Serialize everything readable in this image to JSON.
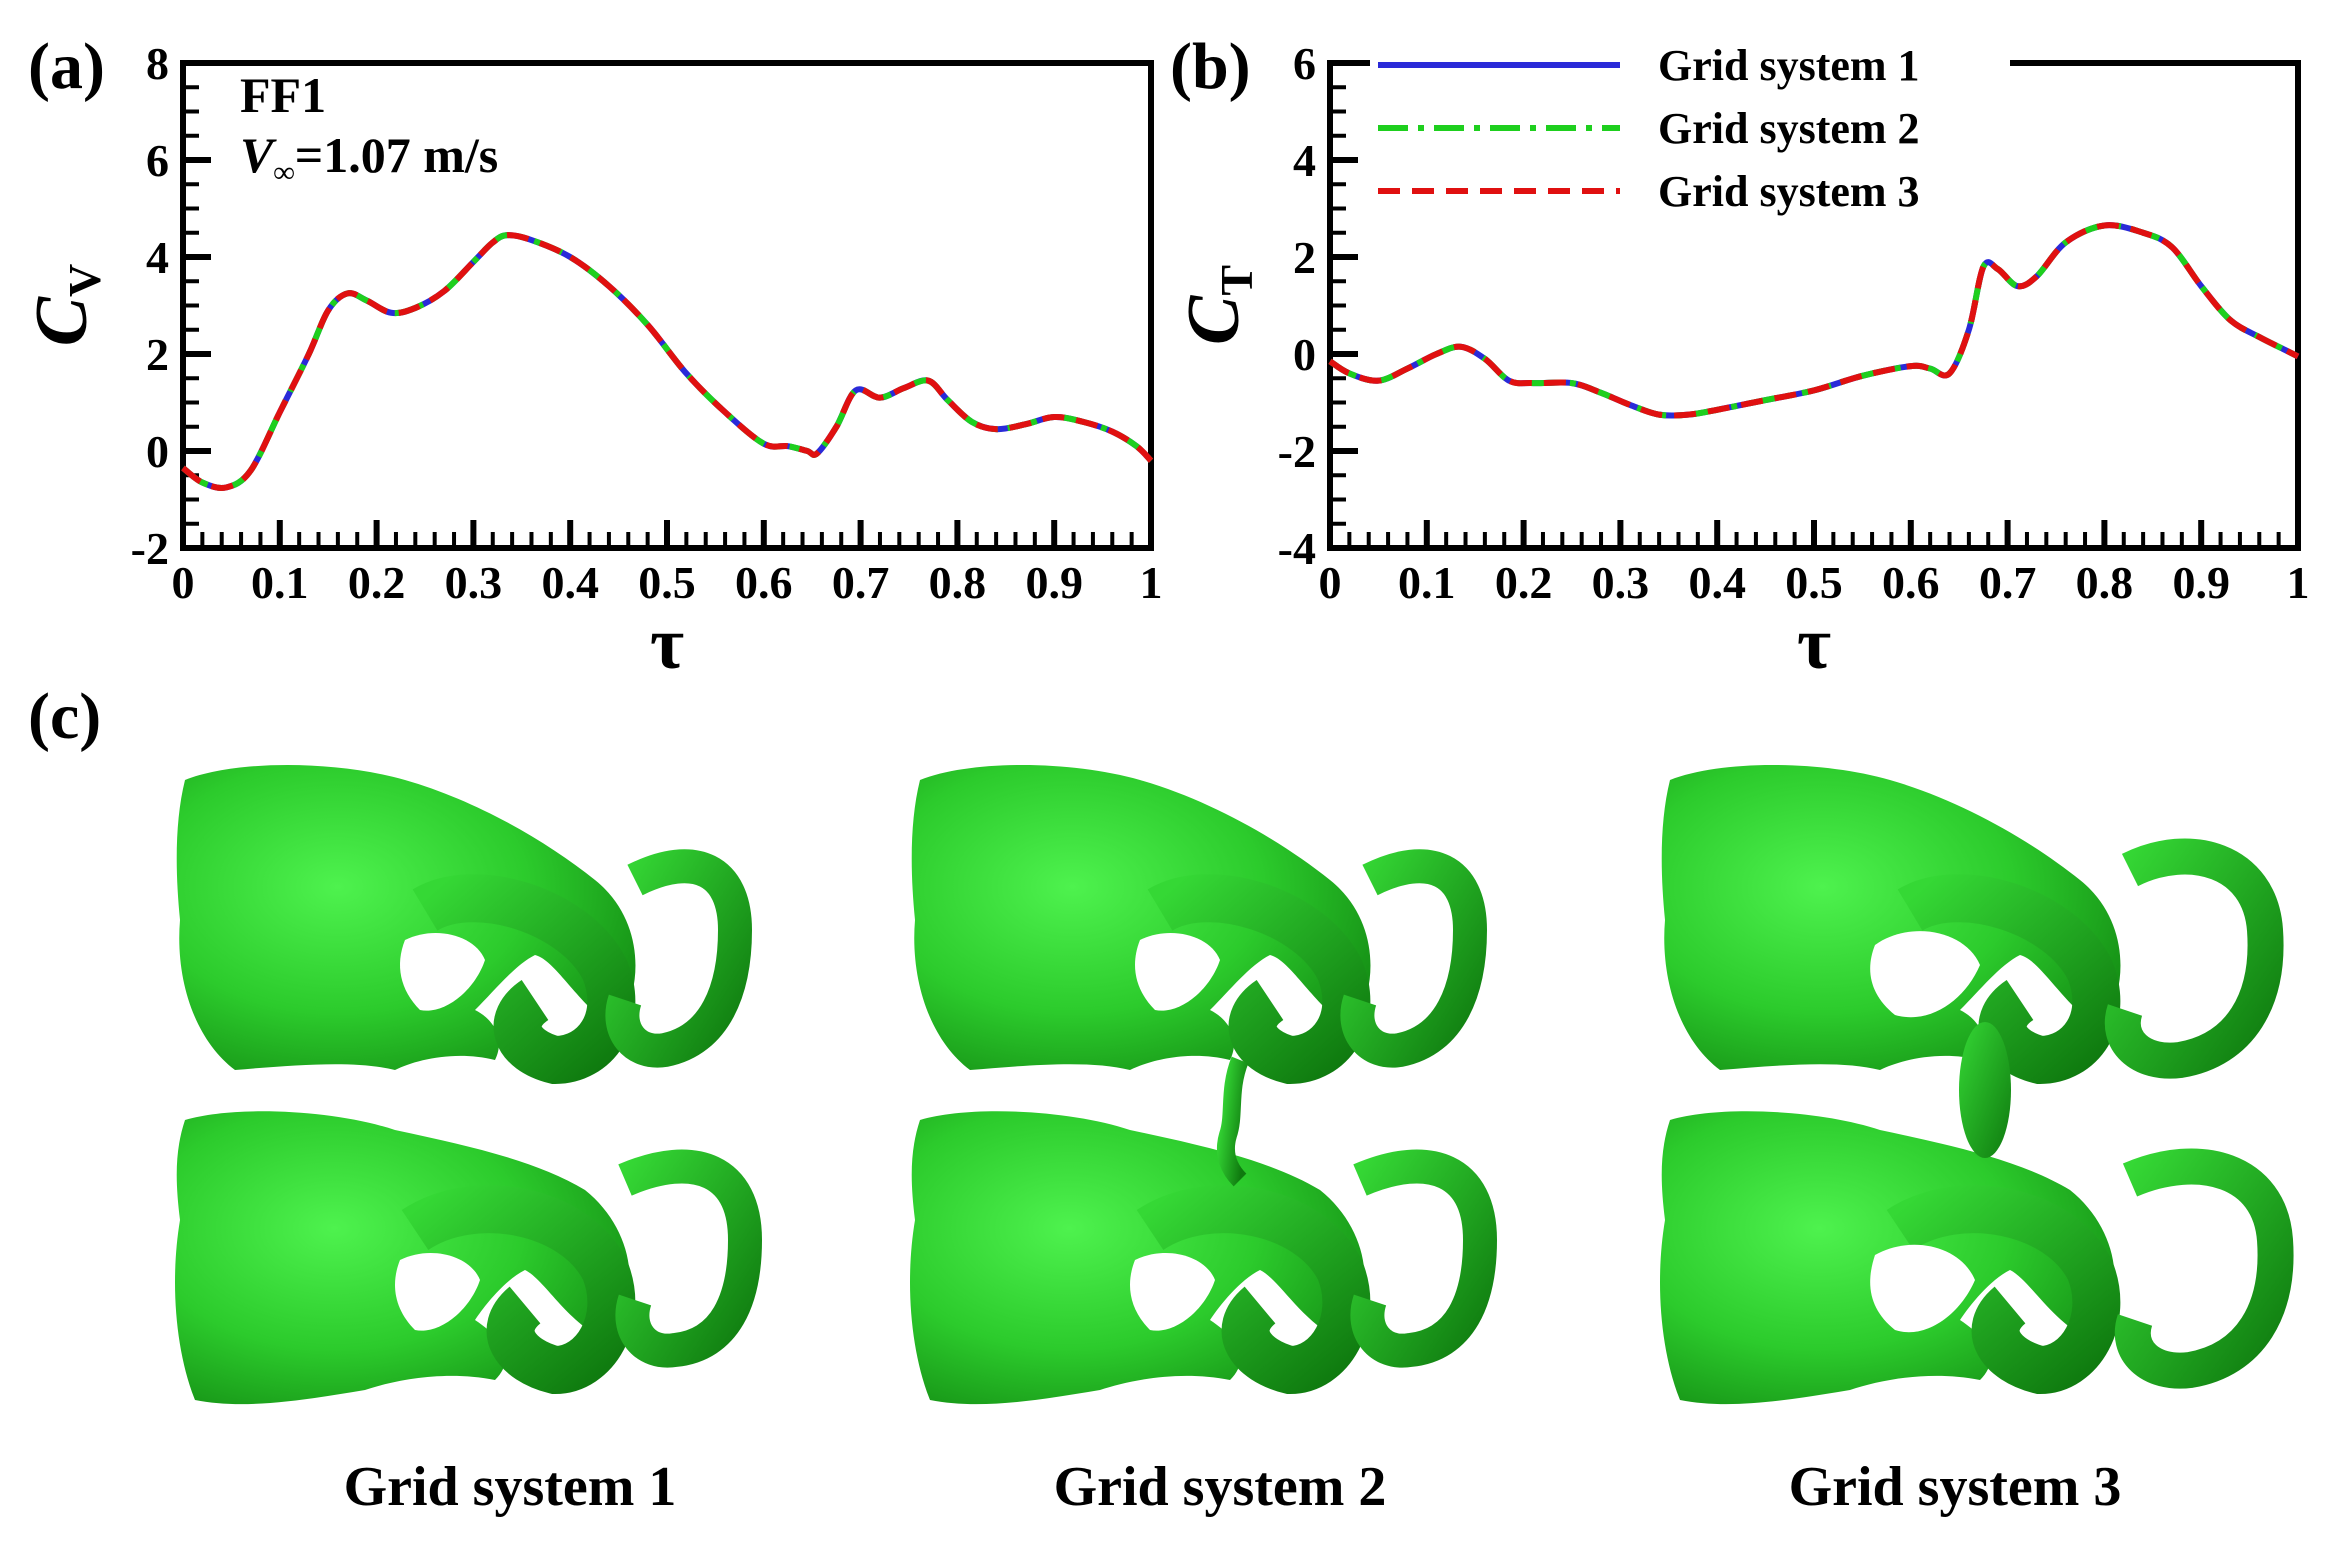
{
  "panel_labels": {
    "a": "(a)",
    "b": "(b)",
    "c": "(c)"
  },
  "annotation": {
    "case": "FF1",
    "velocity_var": "V",
    "velocity_sub": "∞",
    "velocity_value": "=1.07 m/s"
  },
  "legend": [
    {
      "label": "Grid system 1",
      "color": "#2a2ad8",
      "dash": "solid"
    },
    {
      "label": "Grid system 2",
      "color": "#1ecf1e",
      "dash": "dashdot"
    },
    {
      "label": "Grid system 3",
      "color": "#e01010",
      "dash": "dashed"
    }
  ],
  "chart_data": [
    {
      "type": "line",
      "panel": "(a)",
      "xlabel": "τ",
      "ylabel": "C",
      "ylabel_sub": "V",
      "xlim": [
        0,
        1
      ],
      "ylim": [
        -2,
        8
      ],
      "x_ticks": [
        "0",
        "0.1",
        "0.2",
        "0.3",
        "0.4",
        "0.5",
        "0.6",
        "0.7",
        "0.8",
        "0.9",
        "1"
      ],
      "y_ticks": [
        "-2",
        "0",
        "2",
        "4",
        "6",
        "8"
      ],
      "x": [
        0,
        0.02,
        0.045,
        0.07,
        0.1,
        0.13,
        0.15,
        0.17,
        0.19,
        0.215,
        0.24,
        0.27,
        0.3,
        0.32,
        0.335,
        0.36,
        0.4,
        0.44,
        0.48,
        0.52,
        0.56,
        0.6,
        0.625,
        0.645,
        0.655,
        0.675,
        0.695,
        0.72,
        0.745,
        0.77,
        0.79,
        0.815,
        0.84,
        0.87,
        0.9,
        0.93,
        0.96,
        0.985,
        1
      ],
      "series": [
        {
          "name": "Grid system 1",
          "values": [
            -0.35,
            -0.65,
            -0.75,
            -0.4,
            0.8,
            2.0,
            2.9,
            3.25,
            3.1,
            2.85,
            2.95,
            3.3,
            3.9,
            4.3,
            4.45,
            4.35,
            4.0,
            3.4,
            2.6,
            1.6,
            0.8,
            0.15,
            0.1,
            0.0,
            -0.05,
            0.5,
            1.25,
            1.1,
            1.3,
            1.45,
            1.05,
            0.6,
            0.45,
            0.55,
            0.7,
            0.6,
            0.4,
            0.1,
            -0.2
          ]
        },
        {
          "name": "Grid system 2",
          "values": [
            -0.35,
            -0.65,
            -0.75,
            -0.4,
            0.8,
            2.0,
            2.9,
            3.25,
            3.1,
            2.85,
            2.95,
            3.3,
            3.9,
            4.3,
            4.45,
            4.35,
            4.0,
            3.4,
            2.6,
            1.6,
            0.8,
            0.15,
            0.1,
            0.0,
            -0.05,
            0.5,
            1.25,
            1.1,
            1.3,
            1.45,
            1.05,
            0.6,
            0.45,
            0.55,
            0.7,
            0.6,
            0.4,
            0.1,
            -0.2
          ]
        },
        {
          "name": "Grid system 3",
          "values": [
            -0.35,
            -0.65,
            -0.75,
            -0.4,
            0.8,
            2.0,
            2.9,
            3.25,
            3.1,
            2.85,
            2.95,
            3.3,
            3.9,
            4.3,
            4.45,
            4.35,
            4.0,
            3.4,
            2.6,
            1.6,
            0.8,
            0.15,
            0.1,
            0.0,
            -0.05,
            0.5,
            1.25,
            1.1,
            1.3,
            1.45,
            1.05,
            0.6,
            0.45,
            0.55,
            0.7,
            0.6,
            0.4,
            0.1,
            -0.2
          ]
        }
      ]
    },
    {
      "type": "line",
      "panel": "(b)",
      "xlabel": "τ",
      "ylabel": "C",
      "ylabel_sub": "T",
      "xlim": [
        0,
        1
      ],
      "ylim": [
        -4,
        6
      ],
      "x_ticks": [
        "0",
        "0.1",
        "0.2",
        "0.3",
        "0.4",
        "0.5",
        "0.6",
        "0.7",
        "0.8",
        "0.9",
        "1"
      ],
      "y_ticks": [
        "-4",
        "-2",
        "0",
        "2",
        "4",
        "6"
      ],
      "x": [
        0,
        0.02,
        0.05,
        0.08,
        0.11,
        0.135,
        0.16,
        0.185,
        0.21,
        0.25,
        0.28,
        0.31,
        0.34,
        0.37,
        0.4,
        0.45,
        0.5,
        0.55,
        0.6,
        0.62,
        0.64,
        0.66,
        0.675,
        0.69,
        0.71,
        0.73,
        0.76,
        0.8,
        0.84,
        0.87,
        0.9,
        0.93,
        0.96,
        0.985,
        1
      ],
      "series": [
        {
          "name": "Grid system 1",
          "values": [
            -0.15,
            -0.4,
            -0.55,
            -0.3,
            0.0,
            0.15,
            -0.1,
            -0.55,
            -0.6,
            -0.6,
            -0.8,
            -1.05,
            -1.25,
            -1.25,
            -1.15,
            -0.95,
            -0.75,
            -0.45,
            -0.25,
            -0.3,
            -0.4,
            0.5,
            1.8,
            1.75,
            1.4,
            1.6,
            2.3,
            2.65,
            2.5,
            2.2,
            1.4,
            0.7,
            0.35,
            0.1,
            -0.05
          ]
        },
        {
          "name": "Grid system 2",
          "values": [
            -0.15,
            -0.4,
            -0.55,
            -0.3,
            0.0,
            0.15,
            -0.1,
            -0.55,
            -0.6,
            -0.6,
            -0.8,
            -1.05,
            -1.25,
            -1.25,
            -1.15,
            -0.95,
            -0.75,
            -0.45,
            -0.25,
            -0.3,
            -0.4,
            0.5,
            1.8,
            1.75,
            1.4,
            1.6,
            2.3,
            2.65,
            2.5,
            2.2,
            1.4,
            0.7,
            0.35,
            0.1,
            -0.05
          ]
        },
        {
          "name": "Grid system 3",
          "values": [
            -0.15,
            -0.4,
            -0.55,
            -0.3,
            0.0,
            0.15,
            -0.1,
            -0.55,
            -0.6,
            -0.6,
            -0.8,
            -1.05,
            -1.25,
            -1.25,
            -1.15,
            -0.95,
            -0.75,
            -0.45,
            -0.25,
            -0.3,
            -0.4,
            0.5,
            1.8,
            1.75,
            1.4,
            1.6,
            2.3,
            2.65,
            2.5,
            2.2,
            1.4,
            0.7,
            0.35,
            0.1,
            -0.05
          ]
        }
      ]
    }
  ],
  "vortex_images": [
    {
      "caption": "Grid system 1",
      "color": "#22b522",
      "bridge": "none"
    },
    {
      "caption": "Grid system 2",
      "color": "#22b522",
      "bridge": "thin"
    },
    {
      "caption": "Grid system 3",
      "color": "#22b522",
      "bridge": "thick"
    }
  ]
}
